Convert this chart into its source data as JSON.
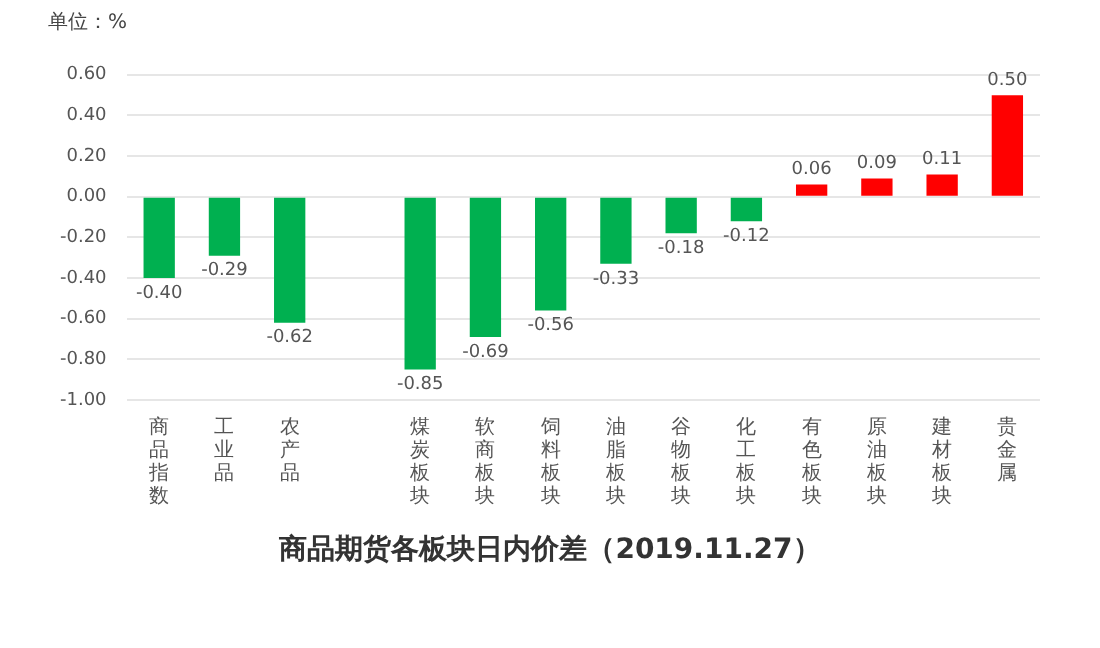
{
  "chart_data": {
    "type": "bar",
    "title": "商品期货各板块日内价差（2019.11.27）",
    "ylabel": "单位：%",
    "categories": [
      "商品指数",
      "工业品",
      "农产品",
      null,
      "煤炭板块",
      "软商板块",
      "饲料板块",
      "油脂板块",
      "谷物板块",
      "化工板块",
      "有色板块",
      "原油板块",
      "建材板块",
      "贵金属"
    ],
    "values": [
      -0.4,
      -0.29,
      -0.62,
      null,
      -0.85,
      -0.69,
      -0.56,
      -0.33,
      -0.18,
      -0.12,
      0.06,
      0.09,
      0.11,
      0.5
    ],
    "colors": [
      "#00b050",
      "#00b050",
      "#00b050",
      null,
      "#00b050",
      "#00b050",
      "#00b050",
      "#00b050",
      "#00b050",
      "#00b050",
      "#ff0000",
      "#ff0000",
      "#ff0000",
      "#ff0000"
    ],
    "value_labels": [
      "-0.40",
      "-0.29",
      "-0.62",
      null,
      "-0.85",
      "-0.69",
      "-0.56",
      "-0.33",
      "-0.18",
      "-0.12",
      "0.06",
      "0.09",
      "0.11",
      "0.50"
    ],
    "ylim": [
      -1.0,
      0.6
    ],
    "yticks": [
      {
        "value": -1.0,
        "label": "-1.00"
      },
      {
        "value": -0.8,
        "label": "-0.80"
      },
      {
        "value": -0.6,
        "label": "-0.60"
      },
      {
        "value": -0.4,
        "label": "-0.40"
      },
      {
        "value": -0.2,
        "label": "-0.20"
      },
      {
        "value": 0,
        "label": "0.00"
      },
      {
        "value": 0.2,
        "label": "0.20"
      },
      {
        "value": 0.4,
        "label": "0.40"
      },
      {
        "value": 0.6,
        "label": "0.60"
      }
    ],
    "grid": "y",
    "legend": false
  }
}
